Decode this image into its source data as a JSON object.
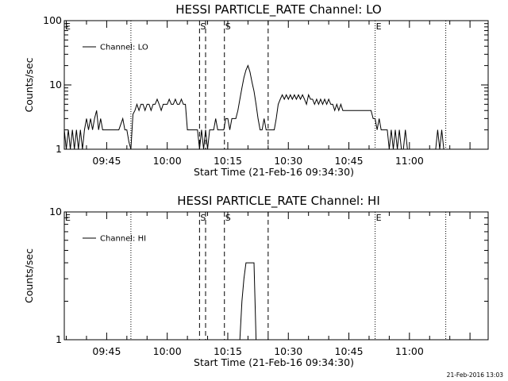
{
  "footer": {
    "timestamp": "21-Feb-2016 13:03"
  },
  "chart_data": [
    {
      "type": "line",
      "title": "HESSI PARTICLE_RATE Channel: LO",
      "xlabel": "Start Time (21-Feb-16 09:34:30)",
      "ylabel": "Counts/sec",
      "y_scale": "log",
      "ylim": [
        1,
        100
      ],
      "xlim": [
        "09:34:30",
        "11:19:30"
      ],
      "x_tick_labels": [
        "09:45",
        "10:00",
        "10:15",
        "10:30",
        "10:45",
        "11:00"
      ],
      "y_tick_labels": [
        "1",
        "10",
        "100"
      ],
      "legend": {
        "position": "top-left",
        "entries": [
          "Channel: LO"
        ]
      },
      "annotations": [
        {
          "label": "E",
          "time": "09:34:30",
          "style": "none"
        },
        {
          "label": "",
          "time": "09:51:00",
          "style": "dotted"
        },
        {
          "label": "S",
          "time": "10:08:00",
          "style": "dashed"
        },
        {
          "label": "",
          "time": "10:09:30",
          "style": "dashed"
        },
        {
          "label": "S",
          "time": "10:14:10",
          "style": "dashed"
        },
        {
          "label": "",
          "time": "10:25:00",
          "style": "dashed"
        },
        {
          "label": "E",
          "time": "10:51:30",
          "style": "dotted"
        },
        {
          "label": "",
          "time": "11:09:00",
          "style": "dotted"
        }
      ],
      "series": [
        {
          "name": "Channel: LO",
          "points": [
            [
              "09:34:30",
              2
            ],
            [
              "09:35:00",
              1
            ],
            [
              "09:35:30",
              2
            ],
            [
              "09:36:00",
              1
            ],
            [
              "09:36:30",
              2
            ],
            [
              "09:37:00",
              1
            ],
            [
              "09:37:30",
              2
            ],
            [
              "09:38:00",
              1
            ],
            [
              "09:38:30",
              2
            ],
            [
              "09:39:00",
              1
            ],
            [
              "09:39:30",
              2
            ],
            [
              "09:40:00",
              3
            ],
            [
              "09:40:30",
              2
            ],
            [
              "09:41:00",
              3
            ],
            [
              "09:41:30",
              2
            ],
            [
              "09:42:00",
              3
            ],
            [
              "09:42:30",
              4
            ],
            [
              "09:43:00",
              2
            ],
            [
              "09:43:30",
              3
            ],
            [
              "09:44:00",
              2
            ],
            [
              "09:44:30",
              2
            ],
            [
              "09:45:00",
              2
            ],
            [
              "09:46:00",
              2
            ],
            [
              "09:47:00",
              2
            ],
            [
              "09:48:00",
              2
            ],
            [
              "09:49:00",
              3
            ],
            [
              "09:49:30",
              2
            ],
            [
              "09:50:00",
              2
            ],
            [
              "09:50:30",
              1.3
            ],
            [
              "09:51:00",
              1
            ],
            [
              "09:51:30",
              3.5
            ],
            [
              "09:52:00",
              4
            ],
            [
              "09:52:30",
              5
            ],
            [
              "09:53:00",
              4
            ],
            [
              "09:53:30",
              5
            ],
            [
              "09:54:00",
              5
            ],
            [
              "09:54:30",
              4
            ],
            [
              "09:55:00",
              5
            ],
            [
              "09:55:30",
              5
            ],
            [
              "09:56:00",
              4
            ],
            [
              "09:56:30",
              5
            ],
            [
              "09:57:00",
              5
            ],
            [
              "09:57:30",
              6
            ],
            [
              "09:58:00",
              5
            ],
            [
              "09:58:30",
              4
            ],
            [
              "09:59:00",
              5
            ],
            [
              "09:59:30",
              5
            ],
            [
              "10:00:00",
              5
            ],
            [
              "10:00:30",
              6
            ],
            [
              "10:01:00",
              5
            ],
            [
              "10:01:30",
              5
            ],
            [
              "10:02:00",
              6
            ],
            [
              "10:02:30",
              5
            ],
            [
              "10:03:00",
              5
            ],
            [
              "10:03:30",
              6
            ],
            [
              "10:04:00",
              5
            ],
            [
              "10:04:30",
              5
            ],
            [
              "10:05:00",
              2
            ],
            [
              "10:05:30",
              2
            ],
            [
              "10:06:00",
              2
            ],
            [
              "10:06:30",
              2
            ],
            [
              "10:07:00",
              2
            ],
            [
              "10:07:30",
              2
            ],
            [
              "10:08:00",
              1
            ],
            [
              "10:08:30",
              2
            ],
            [
              "10:09:00",
              1
            ],
            [
              "10:09:30",
              2
            ],
            [
              "10:10:00",
              1
            ],
            [
              "10:10:30",
              2
            ],
            [
              "10:11:00",
              2
            ],
            [
              "10:11:30",
              2
            ],
            [
              "10:12:00",
              3
            ],
            [
              "10:12:30",
              2
            ],
            [
              "10:13:00",
              2
            ],
            [
              "10:13:30",
              2
            ],
            [
              "10:14:00",
              2
            ],
            [
              "10:14:30",
              3
            ],
            [
              "10:15:00",
              3
            ],
            [
              "10:15:30",
              2
            ],
            [
              "10:16:00",
              3
            ],
            [
              "10:16:30",
              3
            ],
            [
              "10:17:00",
              3
            ],
            [
              "10:17:30",
              4
            ],
            [
              "10:18:00",
              6
            ],
            [
              "10:18:30",
              9
            ],
            [
              "10:19:00",
              13
            ],
            [
              "10:19:30",
              17
            ],
            [
              "10:20:00",
              20
            ],
            [
              "10:20:30",
              16
            ],
            [
              "10:21:00",
              11
            ],
            [
              "10:21:30",
              8
            ],
            [
              "10:22:00",
              5
            ],
            [
              "10:22:30",
              3
            ],
            [
              "10:23:00",
              2
            ],
            [
              "10:23:30",
              2
            ],
            [
              "10:24:00",
              3
            ],
            [
              "10:24:30",
              2
            ],
            [
              "10:25:00",
              2
            ],
            [
              "10:25:30",
              2
            ],
            [
              "10:26:00",
              2
            ],
            [
              "10:26:30",
              2
            ],
            [
              "10:27:00",
              3
            ],
            [
              "10:27:30",
              5
            ],
            [
              "10:28:00",
              6
            ],
            [
              "10:28:30",
              7
            ],
            [
              "10:29:00",
              6
            ],
            [
              "10:29:30",
              7
            ],
            [
              "10:30:00",
              6
            ],
            [
              "10:30:30",
              7
            ],
            [
              "10:31:00",
              6
            ],
            [
              "10:31:30",
              7
            ],
            [
              "10:32:00",
              6
            ],
            [
              "10:32:30",
              7
            ],
            [
              "10:33:00",
              6
            ],
            [
              "10:33:30",
              7
            ],
            [
              "10:34:00",
              6
            ],
            [
              "10:34:30",
              5
            ],
            [
              "10:35:00",
              7
            ],
            [
              "10:35:30",
              6
            ],
            [
              "10:36:00",
              6
            ],
            [
              "10:36:30",
              5
            ],
            [
              "10:37:00",
              6
            ],
            [
              "10:37:30",
              5
            ],
            [
              "10:38:00",
              6
            ],
            [
              "10:38:30",
              5
            ],
            [
              "10:39:00",
              6
            ],
            [
              "10:39:30",
              5
            ],
            [
              "10:40:00",
              6
            ],
            [
              "10:40:30",
              5
            ],
            [
              "10:41:00",
              5
            ],
            [
              "10:41:30",
              4
            ],
            [
              "10:42:00",
              5
            ],
            [
              "10:42:30",
              4
            ],
            [
              "10:43:00",
              5
            ],
            [
              "10:43:30",
              4
            ],
            [
              "10:44:00",
              4
            ],
            [
              "10:44:30",
              4
            ],
            [
              "10:45:00",
              4
            ],
            [
              "10:45:30",
              4
            ],
            [
              "10:46:00",
              4
            ],
            [
              "10:46:30",
              4
            ],
            [
              "10:47:00",
              4
            ],
            [
              "10:47:30",
              4
            ],
            [
              "10:48:00",
              4
            ],
            [
              "10:48:30",
              4
            ],
            [
              "10:49:00",
              4
            ],
            [
              "10:49:30",
              4
            ],
            [
              "10:50:00",
              4
            ],
            [
              "10:50:30",
              4
            ],
            [
              "10:51:00",
              3
            ],
            [
              "10:51:30",
              3
            ],
            [
              "10:52:00",
              2
            ],
            [
              "10:52:30",
              3
            ],
            [
              "10:53:00",
              2
            ],
            [
              "10:53:30",
              2
            ],
            [
              "10:54:00",
              2
            ],
            [
              "10:54:30",
              2
            ],
            [
              "10:55:00",
              1
            ],
            [
              "10:55:30",
              2
            ],
            [
              "10:56:00",
              1
            ],
            [
              "10:56:30",
              2
            ],
            [
              "10:57:00",
              1
            ],
            [
              "10:57:30",
              2
            ],
            [
              "10:58:00",
              1
            ],
            [
              "10:58:30",
              1
            ],
            [
              "10:59:00",
              2
            ],
            [
              "10:59:30",
              1
            ],
            [
              "11:00:00",
              1
            ],
            [
              "11:01:00",
              1
            ],
            [
              "11:02:00",
              1
            ],
            [
              "11:03:00",
              1
            ],
            [
              "11:04:00",
              1
            ],
            [
              "11:05:00",
              1
            ],
            [
              "11:06:00",
              1
            ],
            [
              "11:06:30",
              1
            ],
            [
              "11:07:00",
              2
            ],
            [
              "11:07:30",
              1
            ],
            [
              "11:08:00",
              2
            ],
            [
              "11:08:30",
              1
            ]
          ]
        }
      ]
    },
    {
      "type": "line",
      "title": "HESSI PARTICLE_RATE Channel: HI",
      "xlabel": "Start Time (21-Feb-16 09:34:30)",
      "ylabel": "Counts/sec",
      "y_scale": "log",
      "ylim": [
        1,
        10
      ],
      "xlim": [
        "09:34:30",
        "11:19:30"
      ],
      "x_tick_labels": [
        "09:45",
        "10:00",
        "10:15",
        "10:30",
        "10:45",
        "11:00"
      ],
      "y_tick_labels": [
        "1",
        "10"
      ],
      "legend": {
        "position": "top-left",
        "entries": [
          "Channel: HI"
        ]
      },
      "annotations": [
        {
          "label": "E",
          "time": "09:34:30",
          "style": "none"
        },
        {
          "label": "",
          "time": "09:51:00",
          "style": "dotted"
        },
        {
          "label": "S",
          "time": "10:08:00",
          "style": "dashed"
        },
        {
          "label": "",
          "time": "10:09:30",
          "style": "dashed"
        },
        {
          "label": "S",
          "time": "10:14:10",
          "style": "dashed"
        },
        {
          "label": "",
          "time": "10:25:00",
          "style": "dashed"
        },
        {
          "label": "E",
          "time": "10:51:30",
          "style": "dotted"
        },
        {
          "label": "",
          "time": "11:09:00",
          "style": "dotted"
        }
      ],
      "series": [
        {
          "name": "Channel: HI",
          "points": [
            [
              "10:18:00",
              1
            ],
            [
              "10:18:30",
              2
            ],
            [
              "10:19:00",
              3
            ],
            [
              "10:19:30",
              4
            ],
            [
              "10:20:00",
              4
            ],
            [
              "10:21:00",
              4
            ],
            [
              "10:21:30",
              4
            ],
            [
              "10:22:00",
              1
            ]
          ]
        }
      ]
    }
  ]
}
